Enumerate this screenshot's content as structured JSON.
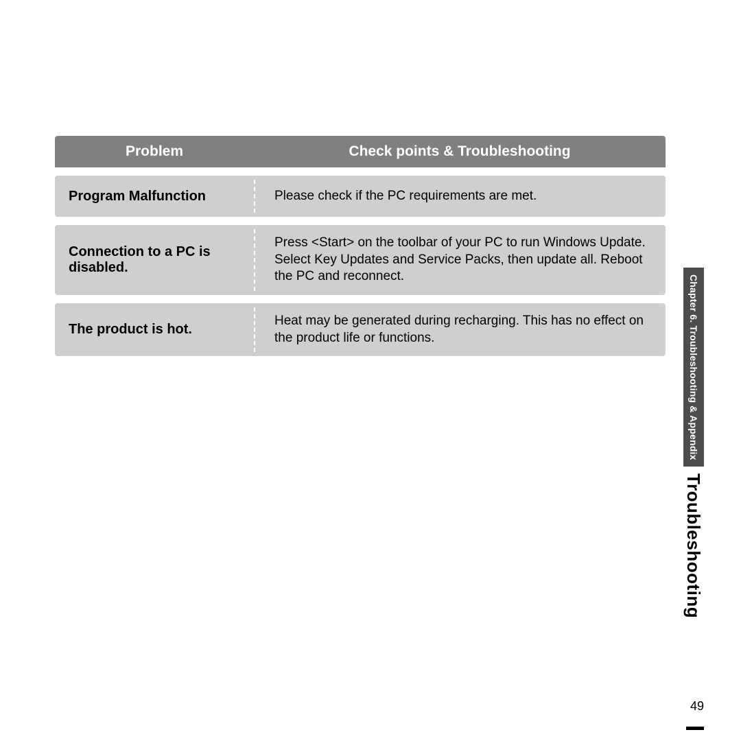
{
  "table": {
    "header": {
      "left": "Problem",
      "right": "Check points & Troubleshooting"
    },
    "rows": [
      {
        "problem": "Program Malfunction",
        "solution": "Please check if the PC requirements are met."
      },
      {
        "problem": "Connection to a PC is disabled.",
        "solution": "Press <Start> on the toolbar of your PC to run Windows Update. Select Key Updates and Service Packs, then update all. Reboot the PC and reconnect."
      },
      {
        "problem": "The product is hot.",
        "solution": "Heat may be generated during recharging. This has no effect on the product life or functions."
      }
    ]
  },
  "sideTab": "Chapter 6. Troubleshooting & Appendix",
  "sideTitle": "Troubleshooting",
  "pageNumber": "49"
}
